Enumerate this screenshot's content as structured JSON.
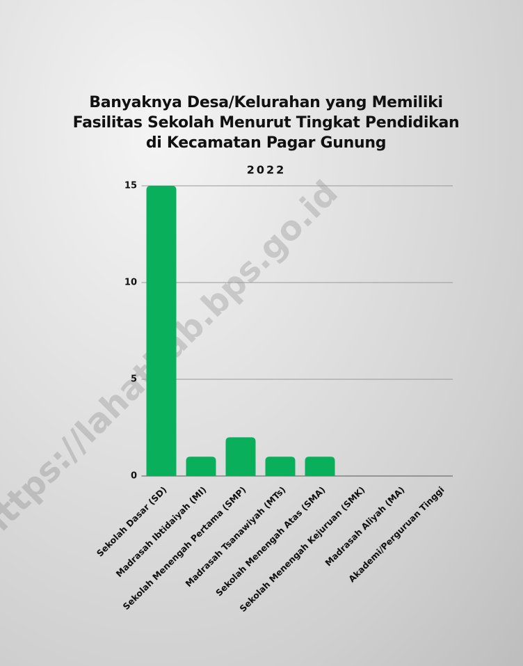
{
  "chart_data": {
    "type": "bar",
    "title": "Banyaknya Desa/Kelurahan yang Memiliki Fasilitas Sekolah Menurut Tingkat Pendidikan di Kecamatan Pagar Gunung",
    "subtitle": "2022",
    "watermark": "https://lahatkab.bps.go.id",
    "categories": [
      "Sekolah Dasar (SD)",
      "Madrasah Ibtidaiyah (MI)",
      "Sekolah Menengah Pertama (SMP)",
      "Madrasah Tsanawiyah (MTs)",
      "Sekolah Menengah Atas (SMA)",
      "Sekolah Menengah Kejuruan (SMK)",
      "Madrasah Aliyah (MA)",
      "Akademi/Perguruan Tinggi"
    ],
    "values": [
      15,
      1,
      2,
      1,
      1,
      0,
      0,
      0
    ],
    "color": "#0aaf5b",
    "ylim": [
      0,
      15
    ],
    "yticks": [
      0,
      5,
      10,
      15
    ],
    "grid": true
  }
}
